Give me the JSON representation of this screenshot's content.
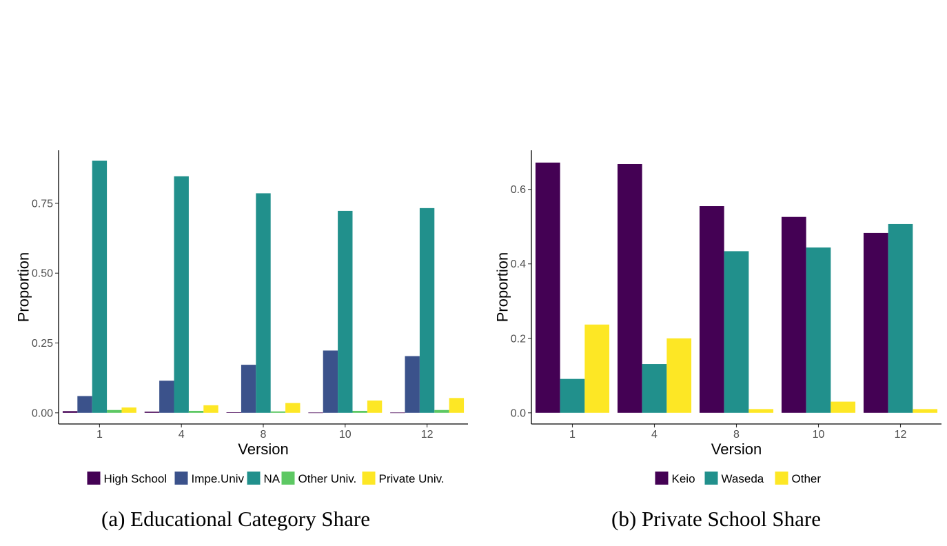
{
  "chart_data": [
    {
      "type": "bar",
      "caption": "(a) Educational Category Share",
      "xlabel": "Version",
      "ylabel": "Proportion",
      "categories": [
        "1",
        "4",
        "8",
        "10",
        "12"
      ],
      "ylim": [
        -0.04,
        0.94
      ],
      "yticks": [
        0.0,
        0.25,
        0.5,
        0.75
      ],
      "ytick_labels": [
        "0.00",
        "0.25",
        "0.50",
        "0.75"
      ],
      "legend_position": "bottom",
      "series": [
        {
          "name": "High School",
          "color": "#440154",
          "values": [
            0.006,
            0.004,
            0.002,
            0.001,
            0.001
          ]
        },
        {
          "name": "Impe.Univ",
          "color": "#3B528B",
          "values": [
            0.06,
            0.115,
            0.172,
            0.223,
            0.203
          ]
        },
        {
          "name": "NA",
          "color": "#21908C",
          "values": [
            0.903,
            0.847,
            0.786,
            0.723,
            0.733
          ]
        },
        {
          "name": "Other Univ.",
          "color": "#5DC863",
          "values": [
            0.01,
            0.007,
            0.005,
            0.007,
            0.01
          ]
        },
        {
          "name": "Private Univ.",
          "color": "#FDE725",
          "values": [
            0.019,
            0.027,
            0.035,
            0.044,
            0.053
          ]
        }
      ]
    },
    {
      "type": "bar",
      "caption": "(b) Private School Share",
      "xlabel": "Version",
      "ylabel": "Proportion",
      "categories": [
        "1",
        "4",
        "8",
        "10",
        "12"
      ],
      "ylim": [
        -0.03,
        0.705
      ],
      "yticks": [
        0.0,
        0.2,
        0.4,
        0.6
      ],
      "ytick_labels": [
        "0.0",
        "0.2",
        "0.4",
        "0.6"
      ],
      "legend_position": "bottom",
      "series": [
        {
          "name": "Keio",
          "color": "#440154",
          "values": [
            0.672,
            0.668,
            0.555,
            0.526,
            0.483
          ]
        },
        {
          "name": "Waseda",
          "color": "#21908C",
          "values": [
            0.091,
            0.131,
            0.434,
            0.444,
            0.507
          ]
        },
        {
          "name": "Other",
          "color": "#FDE725",
          "values": [
            0.237,
            0.2,
            0.01,
            0.03,
            0.01
          ]
        }
      ]
    }
  ]
}
